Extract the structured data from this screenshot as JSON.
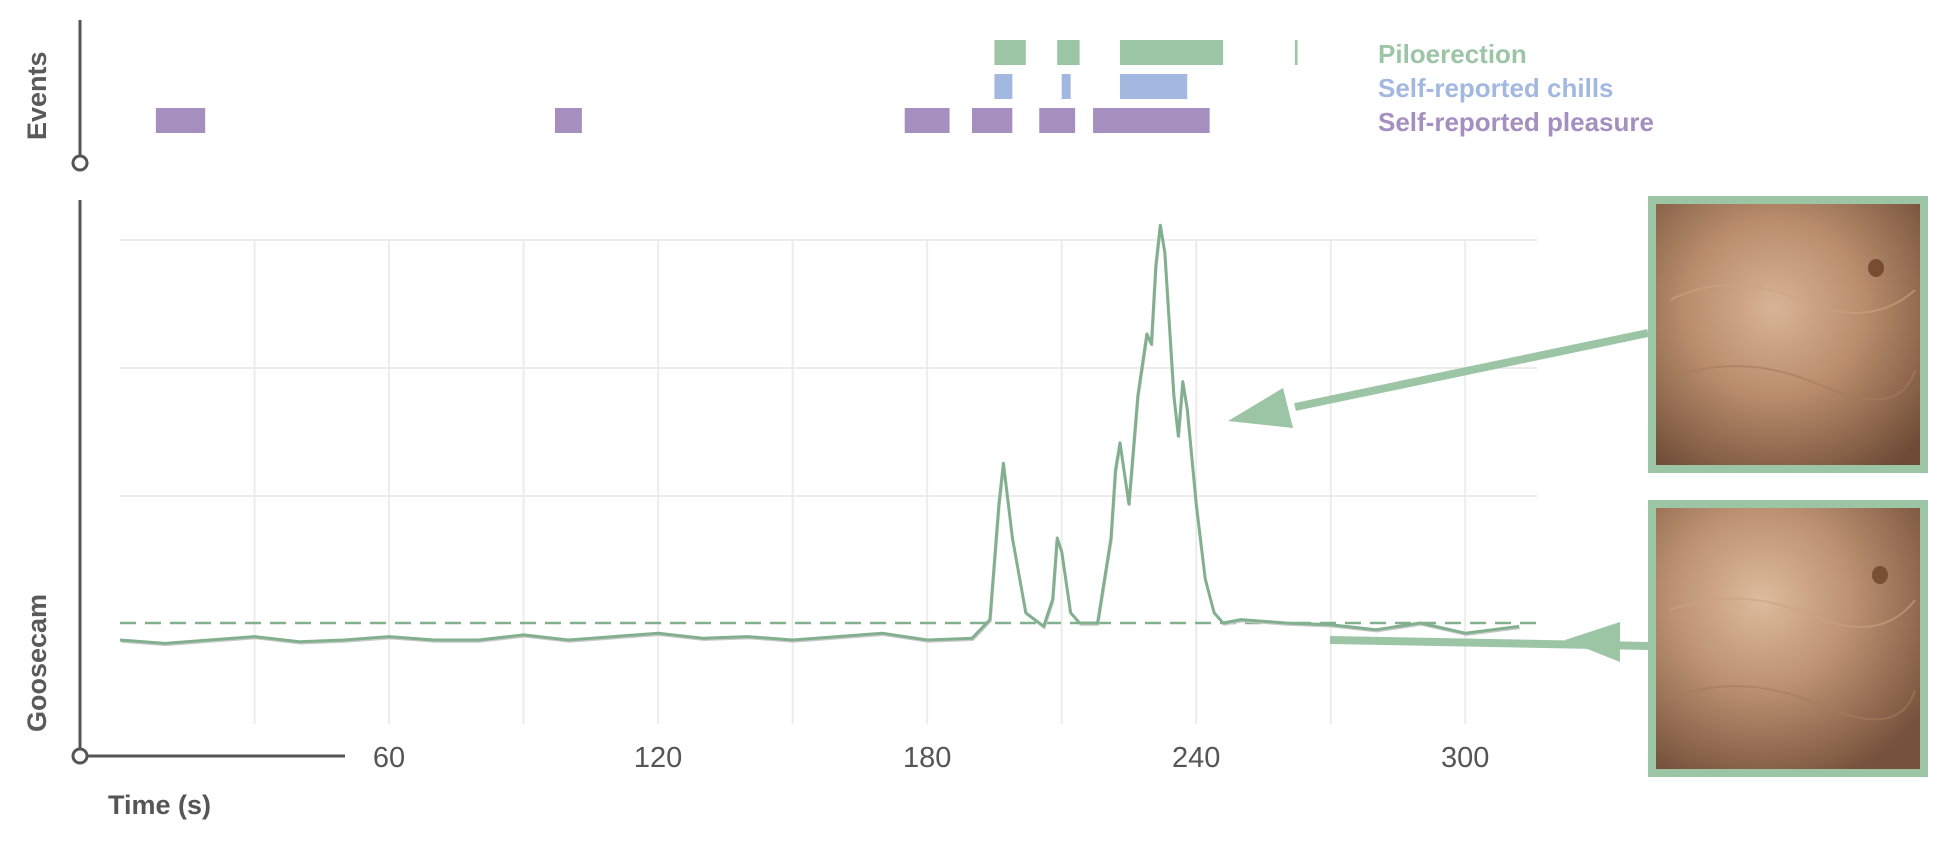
{
  "chart_data": {
    "type": "line",
    "events_label": "Events",
    "goosecam_label": "Goosecam",
    "xlabel": "Time (s)",
    "xlim": [
      0,
      316
    ],
    "xticks": [
      60,
      120,
      180,
      240,
      300
    ],
    "grid": true,
    "legend_position": "top-right",
    "events": [
      {
        "name": "Piloerection",
        "color": "#9cc5a6",
        "intervals": [
          [
            195,
            202
          ],
          [
            209,
            214
          ],
          [
            223,
            246
          ],
          [
            262,
            262.6
          ]
        ]
      },
      {
        "name": "Self-reported chills",
        "color": "#a3b8e0",
        "intervals": [
          [
            195,
            199
          ],
          [
            210,
            212
          ],
          [
            223,
            238
          ]
        ]
      },
      {
        "name": "Self-reported pleasure",
        "color": "#a58fbf",
        "intervals": [
          [
            8,
            19
          ],
          [
            97,
            103
          ],
          [
            175,
            185
          ],
          [
            190,
            199
          ],
          [
            205,
            213
          ],
          [
            217,
            243
          ]
        ]
      }
    ],
    "threshold": 0.05,
    "series": [
      {
        "color": "#82b08e",
        "x": [
          0,
          10,
          20,
          30,
          40,
          50,
          60,
          70,
          80,
          90,
          100,
          110,
          120,
          130,
          140,
          150,
          160,
          170,
          180,
          190,
          194,
          196,
          197,
          199,
          202,
          206,
          208,
          209,
          210,
          212,
          214,
          218,
          221,
          222,
          223,
          225,
          227,
          229,
          230,
          231,
          232,
          233,
          235,
          236,
          237,
          238,
          240,
          242,
          244,
          246,
          250,
          260,
          270,
          280,
          290,
          300,
          312
        ],
        "y": [
          0.0,
          -0.01,
          0.0,
          0.01,
          -0.005,
          0.0,
          0.01,
          0.0,
          0.0,
          0.015,
          0.0,
          0.01,
          0.02,
          0.005,
          0.01,
          0.0,
          0.01,
          0.02,
          0.0,
          0.005,
          0.06,
          0.4,
          0.52,
          0.3,
          0.08,
          0.04,
          0.12,
          0.3,
          0.26,
          0.08,
          0.05,
          0.05,
          0.3,
          0.5,
          0.58,
          0.4,
          0.72,
          0.9,
          0.87,
          1.1,
          1.22,
          1.14,
          0.72,
          0.6,
          0.76,
          0.68,
          0.4,
          0.18,
          0.08,
          0.05,
          0.06,
          0.05,
          0.045,
          0.03,
          0.05,
          0.02,
          0.04
        ]
      }
    ]
  },
  "photos": [
    {
      "name": "skin-photo-peak",
      "description_icon": "skin-closeup-image"
    },
    {
      "name": "skin-photo-baseline",
      "description_icon": "skin-closeup-image"
    }
  ]
}
